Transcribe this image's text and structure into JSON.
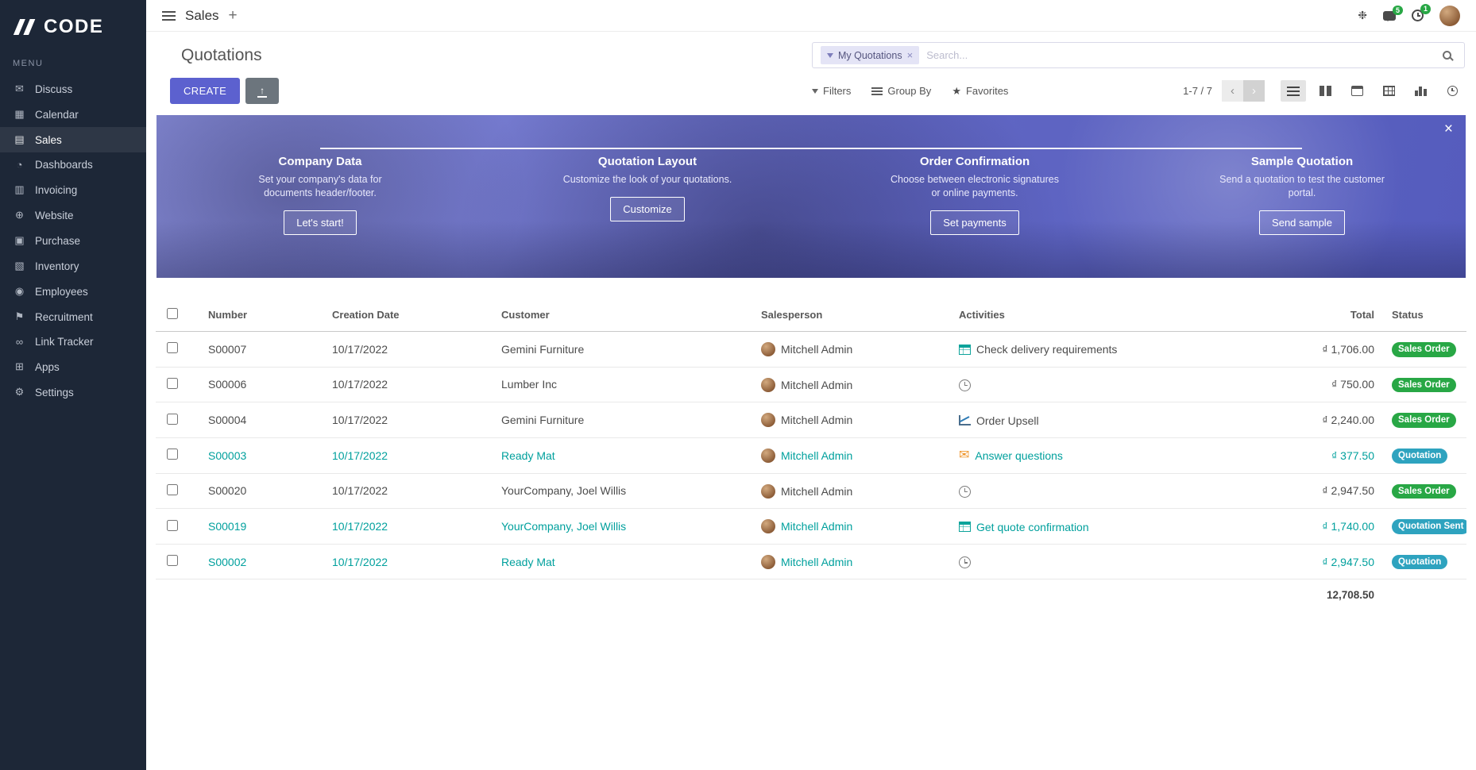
{
  "colors": {
    "accent": "#5c61cf",
    "teal": "#00a09d",
    "success": "#28a745",
    "info": "#2ea3bf",
    "sidebar_bg": "#1d2737",
    "banner_light": "#868bd8",
    "banner_dark": "#555cbd"
  },
  "sidebar": {
    "logo_text": "CODE",
    "menu_label": "MENU",
    "items": [
      {
        "label": "Discuss",
        "icon": "discuss-icon",
        "glyph": "✉"
      },
      {
        "label": "Calendar",
        "icon": "calendar-icon",
        "glyph": "▦"
      },
      {
        "label": "Sales",
        "icon": "sales-icon",
        "glyph": "▤",
        "active": true
      },
      {
        "label": "Dashboards",
        "icon": "dashboards-icon",
        "glyph": "◔"
      },
      {
        "label": "Invoicing",
        "icon": "invoicing-icon",
        "glyph": "▥"
      },
      {
        "label": "Website",
        "icon": "website-icon",
        "glyph": "⊕"
      },
      {
        "label": "Purchase",
        "icon": "purchase-icon",
        "glyph": "▣"
      },
      {
        "label": "Inventory",
        "icon": "inventory-icon",
        "glyph": "▧"
      },
      {
        "label": "Employees",
        "icon": "employees-icon",
        "glyph": "◉"
      },
      {
        "label": "Recruitment",
        "icon": "recruitment-icon",
        "glyph": "⚑"
      },
      {
        "label": "Link Tracker",
        "icon": "link-tracker-icon",
        "glyph": "∞"
      },
      {
        "label": "Apps",
        "icon": "apps-icon",
        "glyph": "⊞"
      },
      {
        "label": "Settings",
        "icon": "settings-icon",
        "glyph": "⚙"
      }
    ]
  },
  "topbar": {
    "app_title": "Sales",
    "messages_badge": "5",
    "activities_badge": "1"
  },
  "control_panel": {
    "title": "Quotations",
    "create_label": "CREATE",
    "filter_chip": "My Quotations",
    "search_placeholder": "Search...",
    "filters_label": "Filters",
    "group_by_label": "Group By",
    "favorites_label": "Favorites",
    "pager_text": "1-7 / 7",
    "view_switcher": [
      "list-view-icon",
      "kanban-view-icon",
      "calendar-view-icon",
      "pivot-view-icon",
      "graph-view-icon",
      "activity-view-icon"
    ]
  },
  "banner": {
    "steps": [
      {
        "title": "Company Data",
        "desc": "Set your company's data for documents header/footer.",
        "button": "Let's start!"
      },
      {
        "title": "Quotation Layout",
        "desc": "Customize the look of your quotations.",
        "button": "Customize"
      },
      {
        "title": "Order Confirmation",
        "desc": "Choose between electronic signatures or online payments.",
        "button": "Set payments"
      },
      {
        "title": "Sample Quotation",
        "desc": "Send a quotation to test the customer portal.",
        "button": "Send sample"
      }
    ]
  },
  "table": {
    "headers": [
      "Number",
      "Creation Date",
      "Customer",
      "Salesperson",
      "Activities",
      "Total",
      "Status"
    ],
    "rows": [
      {
        "number": "S00007",
        "date": "10/17/2022",
        "customer": "Gemini Furniture",
        "salesperson": "Mitchell Admin",
        "activity": {
          "type": "list",
          "text": "Check delivery requirements"
        },
        "total": "₫ 1,706.00",
        "status": "Sales Order",
        "status_type": "success",
        "accent": false
      },
      {
        "number": "S00006",
        "date": "10/17/2022",
        "customer": "Lumber Inc",
        "salesperson": "Mitchell Admin",
        "activity": {
          "type": "clock",
          "text": ""
        },
        "total": "₫ 750.00",
        "status": "Sales Order",
        "status_type": "success",
        "accent": false
      },
      {
        "number": "S00004",
        "date": "10/17/2022",
        "customer": "Gemini Furniture",
        "salesperson": "Mitchell Admin",
        "activity": {
          "type": "chart",
          "text": "Order Upsell"
        },
        "total": "₫ 2,240.00",
        "status": "Sales Order",
        "status_type": "success",
        "accent": false
      },
      {
        "number": "S00003",
        "date": "10/17/2022",
        "customer": "Ready Mat",
        "salesperson": "Mitchell Admin",
        "activity": {
          "type": "envelope",
          "text": "Answer questions"
        },
        "total": "₫ 377.50",
        "status": "Quotation",
        "status_type": "info",
        "accent": true
      },
      {
        "number": "S00020",
        "date": "10/17/2022",
        "customer": "YourCompany, Joel Willis",
        "salesperson": "Mitchell Admin",
        "activity": {
          "type": "clock",
          "text": ""
        },
        "total": "₫ 2,947.50",
        "status": "Sales Order",
        "status_type": "success",
        "accent": false
      },
      {
        "number": "S00019",
        "date": "10/17/2022",
        "customer": "YourCompany, Joel Willis",
        "salesperson": "Mitchell Admin",
        "activity": {
          "type": "list",
          "text": "Get quote confirmation"
        },
        "total": "₫ 1,740.00",
        "status": "Quotation Sent",
        "status_type": "info",
        "accent": true
      },
      {
        "number": "S00002",
        "date": "10/17/2022",
        "customer": "Ready Mat",
        "salesperson": "Mitchell Admin",
        "activity": {
          "type": "clock",
          "text": ""
        },
        "total": "₫ 2,947.50",
        "status": "Quotation",
        "status_type": "info",
        "accent": true
      }
    ],
    "footer_total": "12,708.50"
  }
}
